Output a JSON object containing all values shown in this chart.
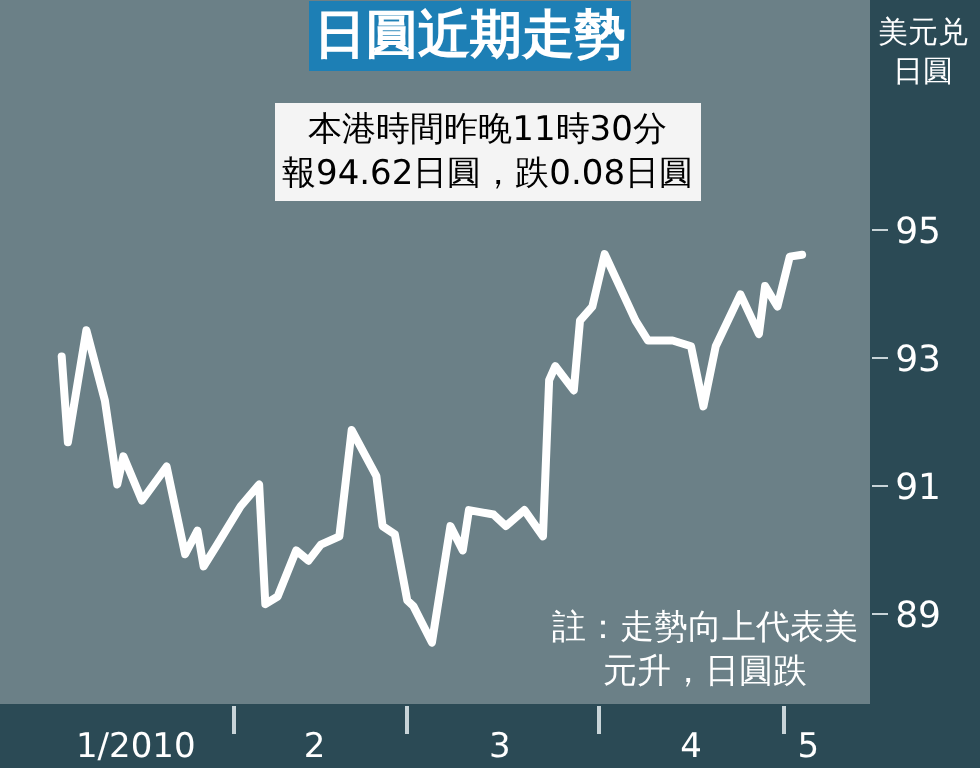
{
  "chart_data": {
    "type": "line",
    "title": "日圓近期走勢",
    "subtitle": "本港時間昨晚11時30分報94.62日圓，跌0.08日圓",
    "ylabel": "美元兑日圓",
    "annotations": [
      "註：走勢向上代表美元升，日圓跌"
    ],
    "x": [
      "2010-01-04",
      "2010-01-05",
      "2010-01-08",
      "2010-01-11",
      "2010-01-13",
      "2010-01-14",
      "2010-01-17",
      "2010-01-21",
      "2010-01-24",
      "2010-01-26",
      "2010-01-27",
      "2010-01-29",
      "2010-02-02",
      "2010-02-05",
      "2010-02-06",
      "2010-02-08",
      "2010-02-11",
      "2010-02-13",
      "2010-02-15",
      "2010-02-18",
      "2010-02-20",
      "2010-02-24",
      "2010-02-25",
      "2010-02-27",
      "2010-03-01",
      "2010-03-02",
      "2010-03-05",
      "2010-03-08",
      "2010-03-10",
      "2010-03-11",
      "2010-03-15",
      "2010-03-17",
      "2010-03-20",
      "2010-03-23",
      "2010-03-24",
      "2010-03-25",
      "2010-03-28",
      "2010-03-29",
      "2010-03-31",
      "2010-04-02",
      "2010-04-07",
      "2010-04-09",
      "2010-04-13",
      "2010-04-16",
      "2010-04-18",
      "2010-04-20",
      "2010-04-24",
      "2010-04-27",
      "2010-04-28",
      "2010-04-30",
      "2010-05-02",
      "2010-05-04"
    ],
    "series": [
      {
        "color": "#ffffff",
        "values": [
          93.03,
          91.69,
          93.44,
          92.34,
          91.03,
          91.47,
          90.78,
          91.31,
          89.94,
          90.31,
          89.75,
          90.06,
          90.69,
          91.03,
          89.16,
          89.28,
          90.0,
          89.84,
          90.09,
          90.22,
          91.88,
          91.16,
          90.38,
          90.25,
          89.22,
          89.13,
          88.56,
          90.38,
          90.0,
          90.63,
          90.56,
          90.38,
          90.63,
          90.22,
          92.66,
          92.88,
          92.5,
          93.59,
          93.81,
          94.63,
          93.59,
          93.28,
          93.28,
          93.19,
          92.25,
          93.19,
          94.0,
          93.38,
          94.13,
          93.81,
          94.59,
          94.62
        ]
      }
    ],
    "xlim": [
      "2009-12-25",
      "2010-05-15"
    ],
    "xticks": [
      {
        "value": "2010-01-16",
        "label": "1/2010"
      },
      {
        "value": "2010-02-01",
        "label": null
      },
      {
        "value": "2010-02-14",
        "label": "2"
      },
      {
        "value": "2010-03-01",
        "label": null
      },
      {
        "value": "2010-03-16",
        "label": "3"
      },
      {
        "value": "2010-04-01",
        "label": null
      },
      {
        "value": "2010-04-16",
        "label": "4"
      },
      {
        "value": "2010-05-01",
        "label": null
      },
      {
        "value": "2010-05-05",
        "label": "5"
      }
    ],
    "ylim": [
      87.6,
      98.6
    ],
    "yticks": [
      89,
      91,
      93,
      95
    ],
    "grid": false,
    "marker": "none",
    "line_style": "solid"
  }
}
